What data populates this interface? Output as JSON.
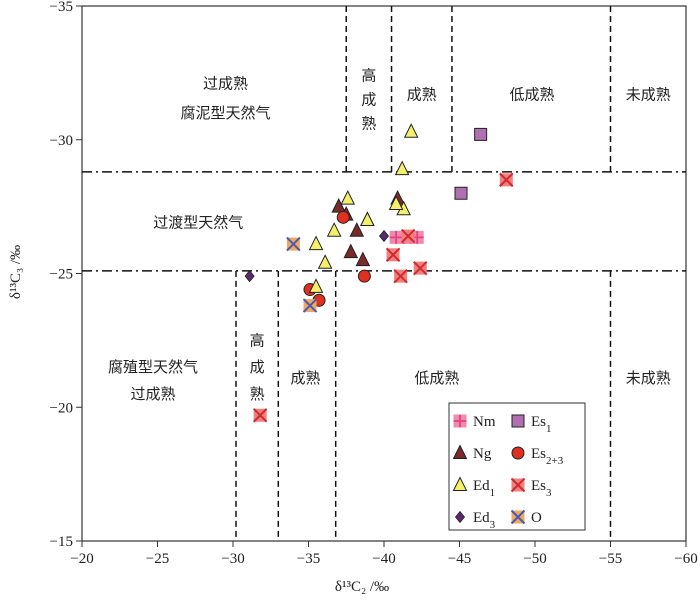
{
  "chart_data": {
    "type": "scatter",
    "title": "",
    "xlabel": "δ¹³C₂ /‰",
    "ylabel": "δ¹³C₃ /‰",
    "xlim": [
      -20,
      -60
    ],
    "ylim": [
      -15,
      -35
    ],
    "xticks": [
      -20,
      -25,
      -30,
      -35,
      -40,
      -45,
      -50,
      -55,
      -60
    ],
    "yticks": [
      -15,
      -20,
      -25,
      -30,
      -35
    ],
    "grid": false,
    "boundaries": {
      "horizontal": [
        -28.8,
        -25.1
      ],
      "vertical_upper": [
        -37.5,
        -40.5,
        -44.5,
        -55
      ],
      "vertical_lower": [
        -30.2,
        -33,
        -36.8,
        -55
      ]
    },
    "regions": [
      {
        "lines": [
          "过成熟",
          "腐泥型天然气"
        ],
        "x": -29.5,
        "y": [
          -32.1,
          -31.0
        ]
      },
      {
        "lines": [
          "高",
          "成",
          "熟"
        ],
        "x": -39.0,
        "y": [
          -32.4,
          -31.5,
          -30.6
        ]
      },
      {
        "lines": [
          "成熟"
        ],
        "x": -42.5,
        "y": [
          -31.7
        ]
      },
      {
        "lines": [
          "低成熟"
        ],
        "x": -49.8,
        "y": [
          -31.7
        ]
      },
      {
        "lines": [
          "未成熟"
        ],
        "x": -57.5,
        "y": [
          -31.7
        ]
      },
      {
        "lines": [
          "过渡型天然气"
        ],
        "x": -27.7,
        "y": [
          -26.9
        ]
      },
      {
        "lines": [
          "腐殖型天然气",
          "过成熟"
        ],
        "x": -24.7,
        "y": [
          -21.5,
          -20.5
        ]
      },
      {
        "lines": [
          "高",
          "成",
          "熟"
        ],
        "x": -31.6,
        "y": [
          -22.5,
          -21.5,
          -20.5
        ]
      },
      {
        "lines": [
          "成熟"
        ],
        "x": -34.8,
        "y": [
          -21.1
        ]
      },
      {
        "lines": [
          "低成熟"
        ],
        "x": -43.5,
        "y": [
          -21.1
        ]
      },
      {
        "lines": [
          "未成熟"
        ],
        "x": -57.5,
        "y": [
          -21.1
        ]
      }
    ],
    "series": [
      {
        "name": "Nm",
        "sub": "",
        "marker": "square-plus",
        "color": "#f28ab0",
        "points": [
          [
            -40.8,
            -26.35
          ],
          [
            -41.3,
            -26.35
          ],
          [
            -41.8,
            -26.35
          ],
          [
            -42.2,
            -26.35
          ]
        ]
      },
      {
        "name": "Es",
        "sub": "1",
        "marker": "square",
        "color": "#b06fb0",
        "points": [
          [
            -45.1,
            -28.0
          ],
          [
            -46.4,
            -30.2
          ]
        ]
      },
      {
        "name": "Ng",
        "sub": "",
        "marker": "triangle",
        "color": "#7b2a2a",
        "points": [
          [
            -37.0,
            -27.5
          ],
          [
            -37.5,
            -27.2
          ],
          [
            -38.2,
            -26.6
          ],
          [
            -38.9,
            -27.0
          ],
          [
            -37.8,
            -25.8
          ],
          [
            -38.6,
            -25.5
          ],
          [
            -40.9,
            -27.8
          ]
        ]
      },
      {
        "name": "Es",
        "sub": "2+3",
        "marker": "circle",
        "color": "#e03020",
        "points": [
          [
            -37.3,
            -27.1
          ],
          [
            -38.7,
            -24.9
          ],
          [
            -35.1,
            -24.4
          ],
          [
            -35.7,
            -24.0
          ]
        ]
      },
      {
        "name": "Ed",
        "sub": "1",
        "marker": "triangle",
        "color": "#f4f06a",
        "points": [
          [
            -37.6,
            -27.8
          ],
          [
            -38.9,
            -27.0
          ],
          [
            -36.7,
            -26.6
          ],
          [
            -35.5,
            -26.1
          ],
          [
            -36.1,
            -25.4
          ],
          [
            -35.5,
            -24.5
          ],
          [
            -41.2,
            -28.9
          ],
          [
            -41.8,
            -30.3
          ],
          [
            -41.3,
            -27.4
          ],
          [
            -40.8,
            -27.6
          ]
        ]
      },
      {
        "name": "Es",
        "sub": "3",
        "marker": "square-x",
        "color": "#f08080",
        "points": [
          [
            -48.1,
            -28.5
          ],
          [
            -41.6,
            -26.4
          ],
          [
            -40.6,
            -25.7
          ],
          [
            -41.1,
            -24.9
          ],
          [
            -42.4,
            -25.2
          ],
          [
            -31.8,
            -19.7
          ]
        ]
      },
      {
        "name": "Ed",
        "sub": "3",
        "marker": "diamond",
        "color": "#5a2a6a",
        "points": [
          [
            -31.1,
            -24.9
          ],
          [
            -40.0,
            -26.4
          ]
        ]
      },
      {
        "name": "O",
        "sub": "",
        "marker": "square-x",
        "color": "#f0a860",
        "points": [
          [
            -34.0,
            -26.1
          ],
          [
            -35.1,
            -23.8
          ]
        ]
      }
    ],
    "legend": {
      "position": "bottom-right"
    }
  }
}
